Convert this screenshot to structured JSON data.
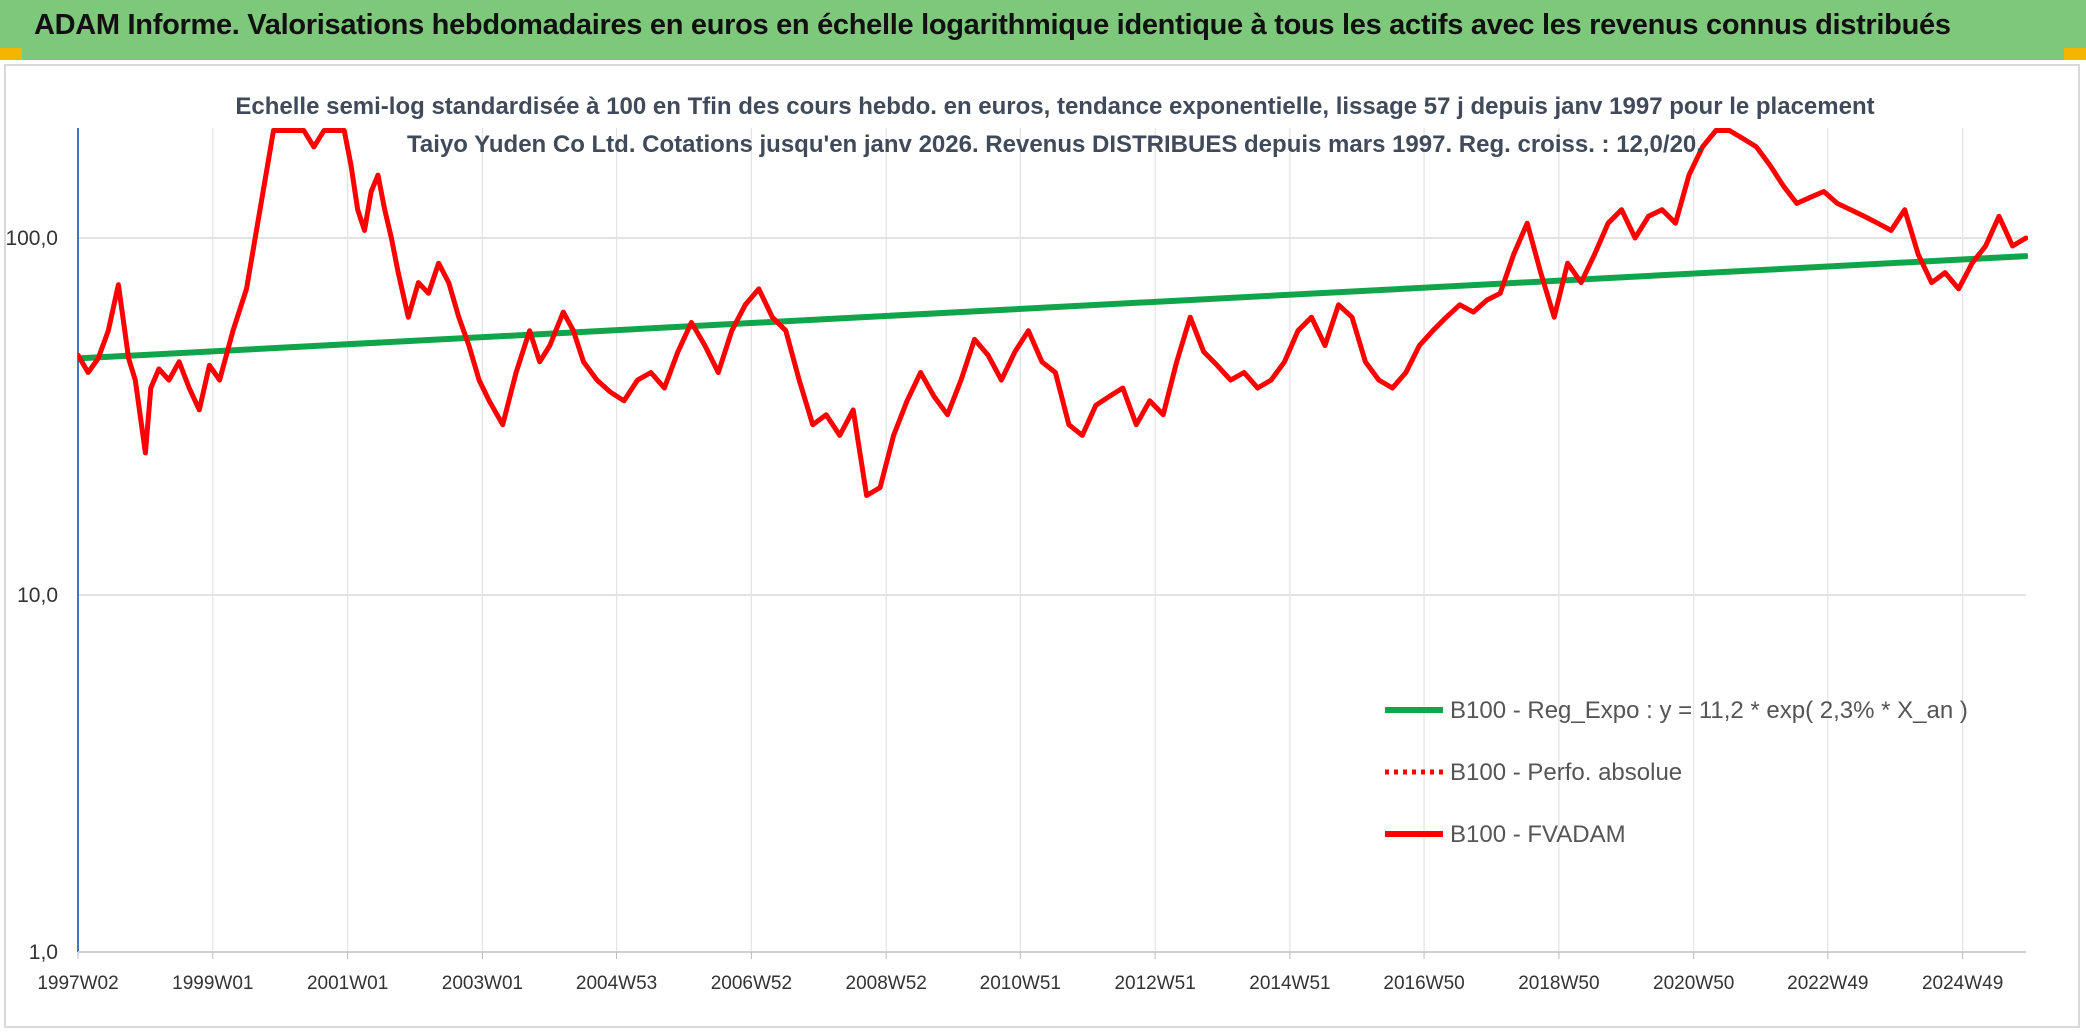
{
  "header": {
    "title": "ADAM Informe. Valorisations hebdomadaires en euros en échelle logarithmique identique à tous les actifs avec les revenus connus distribués",
    "background": "#7dc87a"
  },
  "colors": {
    "trend": "#10a54a",
    "fvadam": "#ff0000",
    "absolue": "#ff0000"
  },
  "chart_data": {
    "type": "line",
    "title": "Echelle semi-log standardisée à 100 en Tfin des cours hebdo. en euros, tendance exponentielle, lissage 57 j depuis janv 1997 pour le placement Taiyo Yuden Co Ltd. Cotations jusqu'en janv 2026. Revenus DISTRIBUES depuis mars 1997. Reg. croiss. : 12,0/20.",
    "y_scale": "log",
    "ylim": [
      1,
      200
    ],
    "xlim": [
      1997.0,
      2025.9
    ],
    "y_ticks": [
      {
        "value": 1,
        "label": "1,0"
      },
      {
        "value": 10,
        "label": "10,0"
      },
      {
        "value": 100,
        "label": "100,0"
      }
    ],
    "x_ticks": [
      {
        "year": 1997.0,
        "label": "1997W02"
      },
      {
        "year": 1999.0,
        "label": "1999W01"
      },
      {
        "year": 2001.0,
        "label": "2001W01"
      },
      {
        "year": 2003.0,
        "label": "2003W01"
      },
      {
        "year": 2004.99,
        "label": "2004W53"
      },
      {
        "year": 2006.99,
        "label": "2006W52"
      },
      {
        "year": 2008.99,
        "label": "2008W52"
      },
      {
        "year": 2010.98,
        "label": "2010W51"
      },
      {
        "year": 2012.98,
        "label": "2012W51"
      },
      {
        "year": 2014.98,
        "label": "2014W51"
      },
      {
        "year": 2016.97,
        "label": "2016W50"
      },
      {
        "year": 2018.97,
        "label": "2018W50"
      },
      {
        "year": 2020.97,
        "label": "2020W50"
      },
      {
        "year": 2022.96,
        "label": "2022W49"
      },
      {
        "year": 2024.96,
        "label": "2024W49"
      }
    ],
    "legend": {
      "position": "bottom-right",
      "entries": [
        {
          "label": "B100 - Reg_Expo : y = 11,2 * exp( 2,3% *  X_an )",
          "style": "solid",
          "color": "#10a54a"
        },
        {
          "label": "B100 - Perfo. absolue",
          "style": "dotted",
          "color": "#ff0000"
        },
        {
          "label": "B100 - FVADAM",
          "style": "solid",
          "color": "#ff0000"
        }
      ]
    },
    "series": [
      {
        "name": "B100 - Reg_Expo : y = 11,2 * exp( 2,3% *  X_an )",
        "kind": "trend",
        "x": [
          1997.0,
          2025.9
        ],
        "y": [
          46,
          89
        ]
      },
      {
        "name": "B100 - FVADAM",
        "kind": "data",
        "x": [
          1997.0,
          1997.15,
          1997.3,
          1997.45,
          1997.6,
          1997.75,
          1997.85,
          1998.0,
          1998.08,
          1998.2,
          1998.35,
          1998.5,
          1998.65,
          1998.8,
          1998.95,
          1999.1,
          1999.3,
          1999.5,
          1999.7,
          1999.9,
          2000.05,
          2000.2,
          2000.35,
          2000.5,
          2000.65,
          2000.8,
          2000.95,
          2001.05,
          2001.15,
          2001.25,
          2001.35,
          2001.45,
          2001.55,
          2001.65,
          2001.75,
          2001.9,
          2002.05,
          2002.2,
          2002.35,
          2002.5,
          2002.65,
          2002.8,
          2002.95,
          2003.1,
          2003.3,
          2003.5,
          2003.7,
          2003.85,
          2004.0,
          2004.2,
          2004.35,
          2004.5,
          2004.7,
          2004.9,
          2005.1,
          2005.3,
          2005.5,
          2005.7,
          2005.9,
          2006.1,
          2006.3,
          2006.5,
          2006.7,
          2006.9,
          2007.1,
          2007.3,
          2007.5,
          2007.7,
          2007.9,
          2008.1,
          2008.3,
          2008.5,
          2008.7,
          2008.9,
          2009.1,
          2009.3,
          2009.5,
          2009.7,
          2009.9,
          2010.1,
          2010.3,
          2010.5,
          2010.7,
          2010.9,
          2011.1,
          2011.3,
          2011.5,
          2011.7,
          2011.9,
          2012.1,
          2012.3,
          2012.5,
          2012.7,
          2012.9,
          2013.1,
          2013.3,
          2013.5,
          2013.7,
          2013.9,
          2014.1,
          2014.3,
          2014.5,
          2014.7,
          2014.9,
          2015.1,
          2015.3,
          2015.5,
          2015.7,
          2015.9,
          2016.1,
          2016.3,
          2016.5,
          2016.7,
          2016.9,
          2017.1,
          2017.3,
          2017.5,
          2017.7,
          2017.9,
          2018.1,
          2018.3,
          2018.5,
          2018.7,
          2018.9,
          2019.1,
          2019.3,
          2019.5,
          2019.7,
          2019.9,
          2020.1,
          2020.3,
          2020.5,
          2020.7,
          2020.9,
          2021.1,
          2021.3,
          2021.5,
          2021.7,
          2021.9,
          2022.1,
          2022.3,
          2022.5,
          2022.7,
          2022.9,
          2023.1,
          2023.3,
          2023.5,
          2023.7,
          2023.9,
          2024.1,
          2024.3,
          2024.5,
          2024.7,
          2024.9,
          2025.1,
          2025.3,
          2025.5,
          2025.7,
          2025.9
        ],
        "y": [
          47,
          42,
          46,
          55,
          74,
          46,
          40,
          25,
          38,
          43,
          40,
          45,
          38,
          33,
          44,
          40,
          55,
          72,
          120,
          200,
          200,
          200,
          200,
          180,
          200,
          200,
          200,
          160,
          120,
          105,
          135,
          150,
          120,
          100,
          80,
          60,
          75,
          70,
          85,
          75,
          60,
          50,
          40,
          35,
          30,
          42,
          55,
          45,
          50,
          62,
          55,
          45,
          40,
          37,
          35,
          40,
          42,
          38,
          48,
          58,
          50,
          42,
          55,
          65,
          72,
          60,
          55,
          40,
          30,
          32,
          28,
          33,
          19,
          20,
          28,
          35,
          42,
          36,
          32,
          40,
          52,
          47,
          40,
          48,
          55,
          45,
          42,
          30,
          28,
          34,
          36,
          38,
          30,
          35,
          32,
          45,
          60,
          48,
          44,
          40,
          42,
          38,
          40,
          45,
          55,
          60,
          50,
          65,
          60,
          45,
          40,
          38,
          42,
          50,
          55,
          60,
          65,
          62,
          67,
          70,
          90,
          110,
          80,
          60,
          85,
          75,
          90,
          110,
          120,
          100,
          115,
          120,
          110,
          150,
          180,
          200,
          200,
          190,
          180,
          160,
          140,
          125,
          130,
          135,
          125,
          120,
          115,
          110,
          105,
          120,
          90,
          75,
          80,
          72,
          85,
          95,
          115,
          95,
          100
        ]
      },
      {
        "name": "B100 - Perfo. absolue",
        "kind": "dotted",
        "x": [],
        "y": []
      }
    ]
  }
}
